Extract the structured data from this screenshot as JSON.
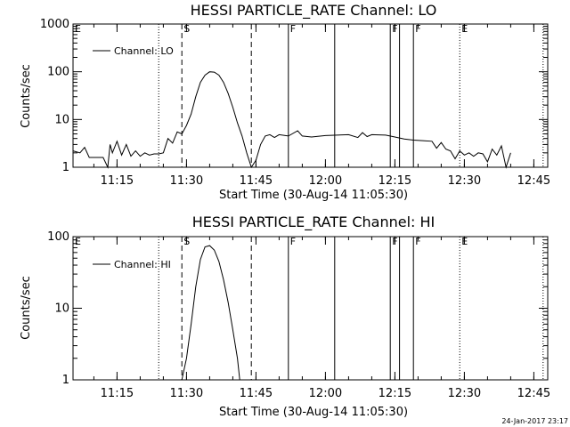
{
  "chart_data": [
    {
      "type": "line",
      "title": "HESSI PARTICLE_RATE Channel: LO",
      "xlabel": "Start Time (30-Aug-14 11:05:30)",
      "ylabel": "Counts/sec",
      "x_ticks": [
        "11:15",
        "11:30",
        "11:45",
        "12:00",
        "12:15",
        "12:30",
        "12:45"
      ],
      "y_ticks": [
        "1",
        "10",
        "100",
        "1000"
      ],
      "ylim": [
        1,
        1000
      ],
      "yscale": "log",
      "grid": false,
      "legend_position": "top-left",
      "series": [
        {
          "name": "Channel: LO",
          "points": [
            [
              "11:05:30",
              2.2
            ],
            [
              "11:07",
              2.0
            ],
            [
              "11:08",
              2.6
            ],
            [
              "11:09",
              1.6
            ],
            [
              "11:10",
              1.6
            ],
            [
              "11:11",
              1.6
            ],
            [
              "11:12",
              1.6
            ],
            [
              "11:13",
              1.0
            ],
            [
              "11:13:30",
              3.0
            ],
            [
              "11:14",
              2.0
            ],
            [
              "11:15",
              3.5
            ],
            [
              "11:16",
              1.8
            ],
            [
              "11:17",
              3.0
            ],
            [
              "11:18",
              1.7
            ],
            [
              "11:19",
              2.2
            ],
            [
              "11:20",
              1.7
            ],
            [
              "11:21",
              2.0
            ],
            [
              "11:22",
              1.8
            ],
            [
              "11:23",
              1.9
            ],
            [
              "11:24",
              1.9
            ],
            [
              "11:25",
              2.0
            ],
            [
              "11:26",
              4.0
            ],
            [
              "11:27",
              3.2
            ],
            [
              "11:28",
              5.5
            ],
            [
              "11:29",
              5.0
            ],
            [
              "11:30",
              7.5
            ],
            [
              "11:31",
              13
            ],
            [
              "11:32",
              30
            ],
            [
              "11:33",
              60
            ],
            [
              "11:34",
              85
            ],
            [
              "11:35",
              100
            ],
            [
              "11:36",
              98
            ],
            [
              "11:37",
              85
            ],
            [
              "11:38",
              60
            ],
            [
              "11:39",
              35
            ],
            [
              "11:40",
              18
            ],
            [
              "11:41",
              8.5
            ],
            [
              "11:42",
              4.5
            ],
            [
              "11:43",
              2.0
            ],
            [
              "11:44",
              1.0
            ],
            [
              "11:45",
              1.4
            ],
            [
              "11:46",
              3.0
            ],
            [
              "11:47",
              4.5
            ],
            [
              "11:48",
              4.8
            ],
            [
              "11:49",
              4.2
            ],
            [
              "11:50",
              4.8
            ],
            [
              "11:52",
              4.5
            ],
            [
              "11:54",
              5.8
            ],
            [
              "11:55",
              4.5
            ],
            [
              "11:57",
              4.3
            ],
            [
              "12:00",
              4.6
            ],
            [
              "12:05",
              4.8
            ],
            [
              "12:07",
              4.2
            ],
            [
              "12:08",
              5.3
            ],
            [
              "12:09",
              4.4
            ],
            [
              "12:10",
              4.8
            ],
            [
              "12:13",
              4.7
            ],
            [
              "12:15",
              4.3
            ],
            [
              "12:17",
              3.9
            ],
            [
              "12:19",
              3.7
            ],
            [
              "12:21",
              3.6
            ],
            [
              "12:23",
              3.5
            ],
            [
              "12:24",
              2.5
            ],
            [
              "12:25",
              3.3
            ],
            [
              "12:26",
              2.4
            ],
            [
              "12:27",
              2.2
            ],
            [
              "12:28",
              1.5
            ],
            [
              "12:29",
              2.2
            ],
            [
              "12:30",
              1.8
            ],
            [
              "12:31",
              2.0
            ],
            [
              "12:32",
              1.7
            ],
            [
              "12:33",
              2.0
            ],
            [
              "12:34",
              1.9
            ],
            [
              "12:35",
              1.3
            ],
            [
              "12:36",
              2.4
            ],
            [
              "12:37",
              1.8
            ],
            [
              "12:38",
              2.8
            ],
            [
              "12:39",
              1.0
            ],
            [
              "12:40",
              2.0
            ]
          ]
        }
      ]
    },
    {
      "type": "line",
      "title": "HESSI PARTICLE_RATE Channel: HI",
      "xlabel": "Start Time (30-Aug-14 11:05:30)",
      "ylabel": "Counts/sec",
      "x_ticks": [
        "11:15",
        "11:30",
        "11:45",
        "12:00",
        "12:15",
        "12:30",
        "12:45"
      ],
      "y_ticks": [
        "1",
        "10",
        "100"
      ],
      "ylim": [
        1,
        100
      ],
      "yscale": "log",
      "grid": false,
      "legend_position": "top-left",
      "series": [
        {
          "name": "Channel: HI",
          "points": [
            [
              "11:29",
              1.0
            ],
            [
              "11:30",
              2.0
            ],
            [
              "11:31",
              6.0
            ],
            [
              "11:32",
              20
            ],
            [
              "11:33",
              48
            ],
            [
              "11:34",
              72
            ],
            [
              "11:35",
              75
            ],
            [
              "11:36",
              65
            ],
            [
              "11:37",
              45
            ],
            [
              "11:38",
              25
            ],
            [
              "11:39",
              12
            ],
            [
              "11:40",
              5.0
            ],
            [
              "11:41",
              2.0
            ],
            [
              "11:41:30",
              1.0
            ]
          ]
        }
      ]
    }
  ],
  "flag_lines": [
    {
      "time": "11:05:30",
      "style": "dotted",
      "label": "E"
    },
    {
      "time": "11:24",
      "style": "dotted",
      "label": ""
    },
    {
      "time": "11:29",
      "style": "dashed",
      "label": "S"
    },
    {
      "time": "11:44",
      "style": "dashed",
      "label": ""
    },
    {
      "time": "11:52",
      "style": "solid",
      "label": "F"
    },
    {
      "time": "12:02",
      "style": "solid",
      "label": ""
    },
    {
      "time": "12:14",
      "style": "solid",
      "label": "F"
    },
    {
      "time": "12:16",
      "style": "solid",
      "label": ""
    },
    {
      "time": "12:19",
      "style": "solid",
      "label": "F"
    },
    {
      "time": "12:29",
      "style": "dotted",
      "label": "E"
    },
    {
      "time": "12:47",
      "style": "dotted",
      "label": ""
    }
  ],
  "timestamp": "24-Jan-2017 23:17"
}
